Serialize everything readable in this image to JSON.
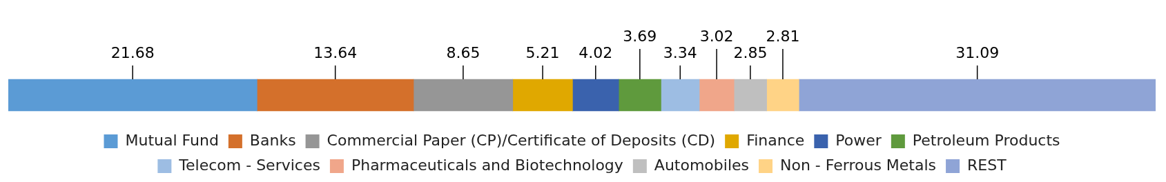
{
  "chart_data": {
    "type": "bar",
    "orientation": "horizontal",
    "stacked": true,
    "categories": [
      null
    ],
    "xlim": [
      0,
      100
    ],
    "data_labels": true,
    "legend": "bottom",
    "series": [
      {
        "name": "Mutual Fund",
        "color": "#5b9bd5",
        "values": [
          21.68
        ]
      },
      {
        "name": "Banks",
        "color": "#d4702b",
        "values": [
          13.64
        ]
      },
      {
        "name": "Commercial Paper (CP)/Certificate of Deposits (CD)",
        "color": "#969696",
        "values": [
          8.65
        ]
      },
      {
        "name": "Finance",
        "color": "#e0a800",
        "values": [
          5.21
        ]
      },
      {
        "name": "Power",
        "color": "#3a62ad",
        "values": [
          4.02
        ]
      },
      {
        "name": "Petroleum Products",
        "color": "#5f9a3d",
        "values": [
          3.69
        ]
      },
      {
        "name": "Telecom - Services",
        "color": "#9dbde3",
        "values": [
          3.34
        ]
      },
      {
        "name": "Pharmaceuticals and Biotechnology",
        "color": "#f0a68a",
        "values": [
          3.02
        ]
      },
      {
        "name": "Automobiles",
        "color": "#bfbfbf",
        "values": [
          2.85
        ]
      },
      {
        "name": "Non - Ferrous Metals",
        "color": "#ffd386",
        "values": [
          2.81
        ]
      },
      {
        "name": "REST",
        "color": "#8fa4d6",
        "values": [
          31.09
        ]
      }
    ]
  }
}
